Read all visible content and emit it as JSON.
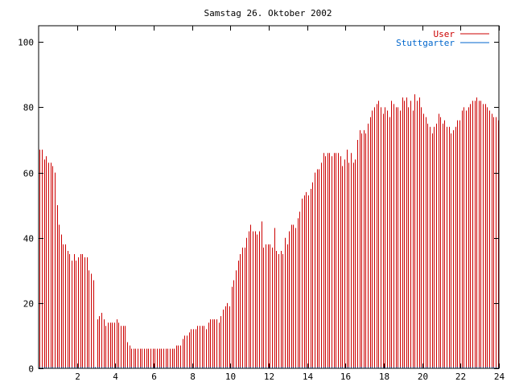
{
  "chart_data": {
    "type": "bar",
    "title": "Samstag 26. Oktober 2002",
    "xlabel": "",
    "ylabel": "",
    "xlim": [
      0,
      24
    ],
    "ylim": [
      0,
      105
    ],
    "xticks": [
      2,
      4,
      6,
      8,
      10,
      12,
      14,
      16,
      18,
      20,
      22,
      24
    ],
    "xtick_labels": [
      "2",
      "4",
      "6",
      "8",
      "10",
      "12",
      "14",
      "16",
      "18",
      "20",
      "22",
      "24"
    ],
    "yticks": [
      0,
      20,
      40,
      60,
      80,
      100
    ],
    "ytick_labels": [
      "0",
      "20",
      "40",
      "60",
      "80",
      "100"
    ],
    "grid": false,
    "legend_position": "top-right",
    "sample_interval_hours": 0.08333,
    "series": [
      {
        "name": "User",
        "color": "#cc0000",
        "style": "impulses",
        "values": [
          67,
          67,
          64,
          65,
          63,
          63,
          62,
          60,
          50,
          44,
          41,
          38,
          38,
          36,
          35,
          33,
          35,
          33,
          34,
          35,
          35,
          34,
          34,
          30,
          29,
          27,
          0,
          15,
          16,
          17,
          15,
          13,
          14,
          14,
          14,
          14,
          15,
          14,
          13,
          13,
          13,
          8,
          7,
          6,
          6,
          6,
          6,
          6,
          6,
          6,
          6,
          6,
          6,
          6,
          6,
          6,
          6,
          6,
          6,
          6,
          6,
          6,
          6,
          6,
          7,
          7,
          7,
          9,
          10,
          10,
          11,
          12,
          12,
          12,
          13,
          13,
          13,
          13,
          12,
          14,
          15,
          15,
          15,
          15,
          14,
          16,
          18,
          19,
          20,
          19,
          25,
          27,
          30,
          33,
          35,
          37,
          37,
          40,
          42,
          44,
          42,
          42,
          41,
          42,
          45,
          37,
          38,
          38,
          38,
          37,
          43,
          36,
          35,
          36,
          35,
          40,
          38,
          42,
          44,
          44,
          43,
          46,
          48,
          52,
          53,
          54,
          53,
          55,
          57,
          60,
          61,
          61,
          63,
          66,
          65,
          66,
          66,
          65,
          66,
          66,
          66,
          65,
          62,
          64,
          67,
          63,
          66,
          63,
          64,
          70,
          73,
          72,
          73,
          72,
          75,
          77,
          79,
          80,
          81,
          82,
          80,
          78,
          80,
          79,
          77,
          82,
          81,
          80,
          80,
          79,
          83,
          82,
          83,
          80,
          82,
          79,
          84,
          82,
          83,
          80,
          78,
          77,
          75,
          74,
          72,
          74,
          75,
          78,
          77,
          75,
          76,
          74,
          74,
          72,
          73,
          74,
          76,
          76,
          79,
          80,
          79,
          80,
          81,
          82,
          82,
          83,
          82,
          82,
          81,
          81,
          80,
          79,
          78,
          77,
          77,
          76
        ]
      },
      {
        "name": "Stuttgarter",
        "color": "#0066cc",
        "style": "impulses",
        "values": [
          0,
          0,
          0,
          0,
          0,
          0,
          0,
          0,
          0,
          0,
          0,
          0,
          0,
          0,
          0,
          0,
          0,
          0,
          0,
          0,
          0,
          0,
          0,
          0,
          0,
          0,
          0,
          0,
          0,
          0,
          0,
          0,
          0,
          0,
          0,
          0,
          0,
          0,
          0,
          0,
          0,
          0,
          0,
          0,
          0,
          0,
          0,
          0,
          0,
          0,
          0,
          0,
          0,
          0,
          0,
          0,
          0,
          0,
          0,
          0,
          0,
          0,
          0,
          0,
          0,
          0,
          0,
          0,
          0,
          0,
          0,
          0,
          0,
          0,
          0,
          0,
          0,
          0,
          0,
          0,
          0,
          0,
          0,
          0,
          0,
          0,
          0,
          0,
          0,
          0,
          0,
          0,
          0,
          0,
          0,
          0,
          0,
          0,
          0,
          0,
          0,
          0,
          0,
          0,
          0,
          0,
          0,
          0,
          0,
          0,
          0,
          0,
          0,
          0,
          0,
          0,
          0,
          0,
          0,
          0,
          0,
          0,
          0,
          0,
          0,
          0,
          0,
          0,
          0,
          0,
          0,
          0,
          0,
          0,
          0,
          0,
          0,
          0,
          0,
          0,
          0,
          0,
          0,
          0,
          0,
          0,
          0,
          0,
          0,
          0,
          0,
          0,
          0,
          0,
          0,
          0,
          0,
          0,
          0,
          0,
          0,
          0,
          0,
          0,
          0,
          0,
          0,
          0,
          0,
          0,
          0,
          0,
          0,
          0,
          0,
          0,
          0,
          0,
          0,
          0,
          0,
          0,
          0,
          0,
          0,
          0,
          0,
          0,
          0,
          0,
          0,
          0,
          0,
          0,
          0,
          0,
          0,
          0,
          0,
          0,
          0,
          0,
          0,
          0,
          0,
          0,
          0,
          0,
          0,
          0,
          0,
          0,
          0,
          0,
          0,
          0
        ]
      }
    ]
  }
}
